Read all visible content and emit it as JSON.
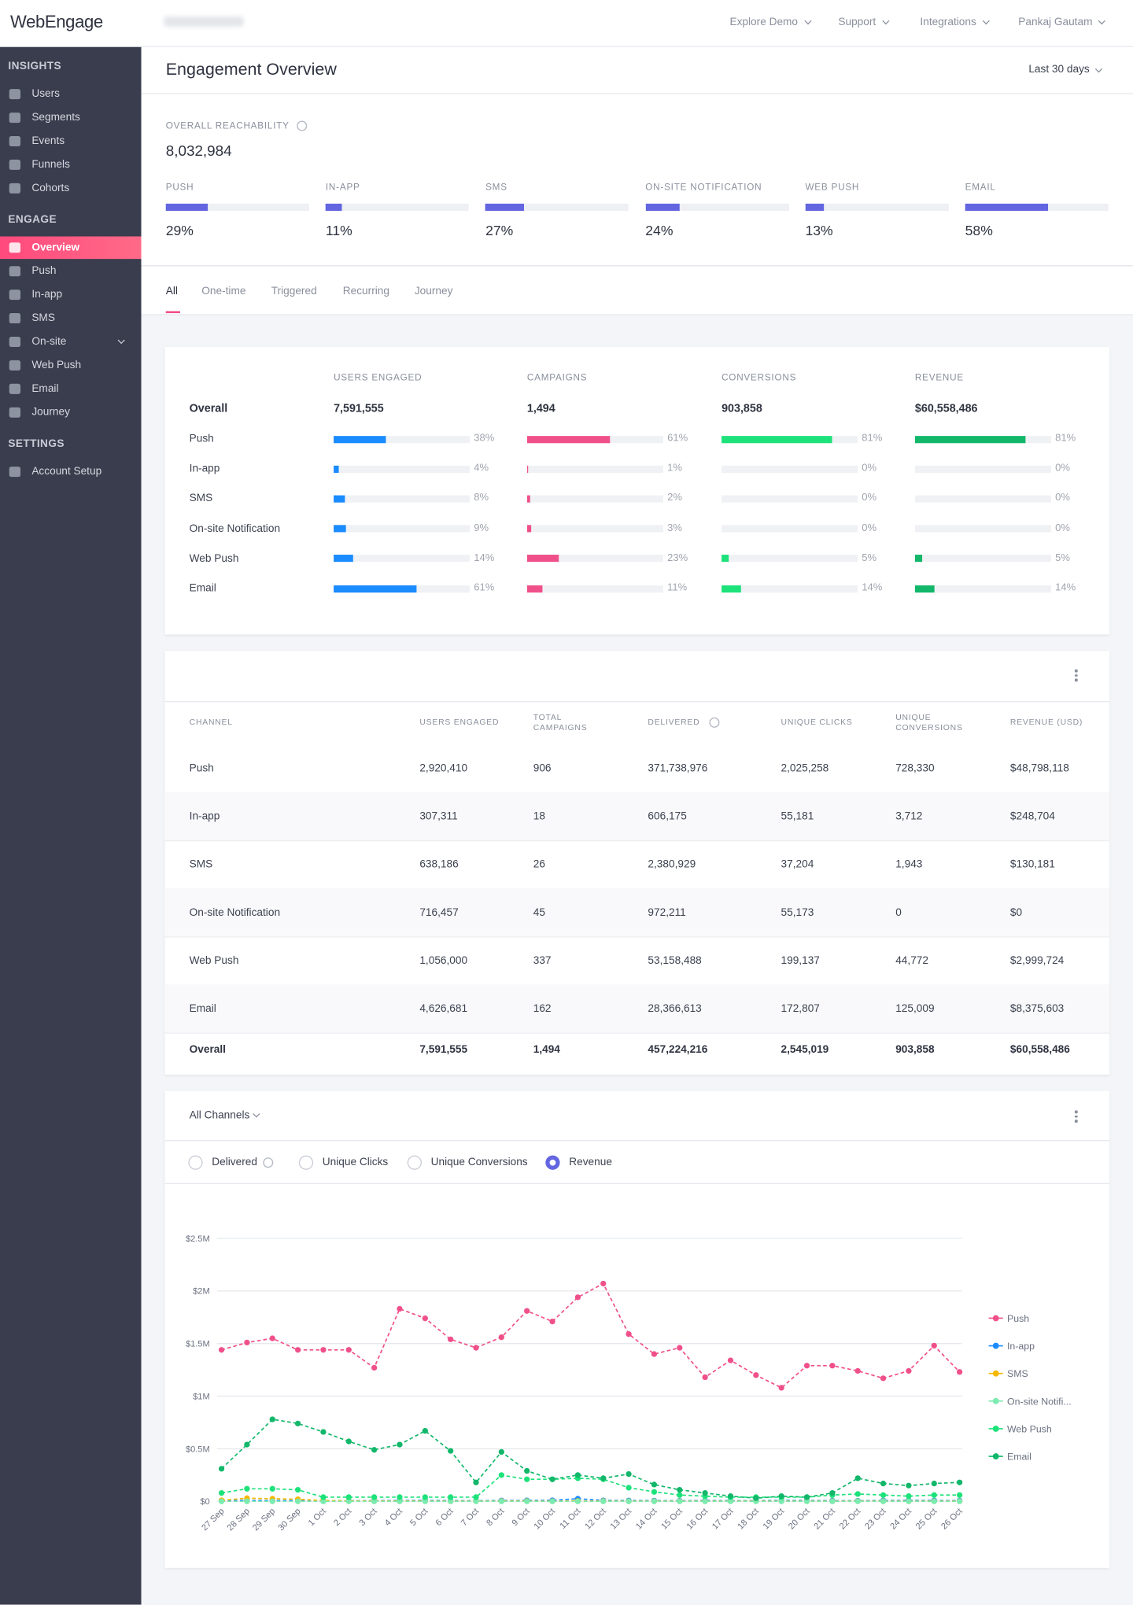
{
  "nav": {
    "logo": "WebEngage",
    "menu": [
      "Explore Demo",
      "Support",
      "Integrations",
      "Pankaj Gautam"
    ]
  },
  "sidebar": {
    "active_item": "Overview",
    "sections": [
      {
        "title": "INSIGHTS",
        "items": [
          "Users",
          "Segments",
          "Events",
          "Funnels",
          "Cohorts"
        ]
      },
      {
        "title": "ENGAGE",
        "items": [
          "Overview",
          "Push",
          "In-app",
          "SMS",
          "On-site",
          "Web Push",
          "Email",
          "Journey"
        ]
      },
      {
        "title": "SETTINGS",
        "items": [
          "Account Setup"
        ]
      }
    ]
  },
  "header": {
    "title": "Engagement Overview",
    "range": "Last 30 days"
  },
  "reachability": {
    "label": "OVERALL REACHABILITY",
    "value": "8,032,984",
    "color": "#6366e0",
    "channels": [
      {
        "name": "PUSH",
        "value": 29,
        "label": "29%"
      },
      {
        "name": "IN-APP",
        "value": 11,
        "label": "11%"
      },
      {
        "name": "SMS",
        "value": 27,
        "label": "27%"
      },
      {
        "name": "ON-SITE NOTIFICATION",
        "value": 24,
        "label": "24%"
      },
      {
        "name": "WEB PUSH",
        "value": 13,
        "label": "13%"
      },
      {
        "name": "EMAIL",
        "value": 58,
        "label": "58%"
      }
    ]
  },
  "tabs": {
    "items": [
      "All",
      "One-time",
      "Triggered",
      "Recurring",
      "Journey"
    ],
    "active": 0
  },
  "summary": {
    "columns": [
      "USERS ENGAGED",
      "CAMPAIGNS",
      "CONVERSIONS",
      "REVENUE"
    ],
    "colors": [
      "#1a8cff",
      "#f0508a",
      "#1de27a",
      "#12b76a"
    ],
    "overall": {
      "label": "Overall",
      "values": [
        "7,591,555",
        "1,494",
        "903,858",
        "$60,558,486"
      ]
    },
    "rows": [
      {
        "label": "Push",
        "values": [
          38,
          61,
          81,
          81
        ],
        "value_labels": [
          "38%",
          "61%",
          "81%",
          "81%"
        ]
      },
      {
        "label": "In-app",
        "values": [
          4,
          1,
          0,
          0
        ],
        "value_labels": [
          "4%",
          "1%",
          "0%",
          "0%"
        ]
      },
      {
        "label": "SMS",
        "values": [
          8,
          2,
          0,
          0
        ],
        "value_labels": [
          "8%",
          "2%",
          "0%",
          "0%"
        ]
      },
      {
        "label": "On-site Notification",
        "values": [
          9,
          3,
          0,
          0
        ],
        "value_labels": [
          "9%",
          "3%",
          "0%",
          "0%"
        ]
      },
      {
        "label": "Web Push",
        "values": [
          14,
          23,
          5,
          5
        ],
        "value_labels": [
          "14%",
          "23%",
          "5%",
          "5%"
        ]
      },
      {
        "label": "Email",
        "values": [
          61,
          11,
          14,
          14
        ],
        "value_labels": [
          "61%",
          "11%",
          "14%",
          "14%"
        ]
      }
    ]
  },
  "channel_table": {
    "headers": [
      "CHANNEL",
      "USERS ENGAGED",
      "TOTAL CAMPAIGNS",
      "DELIVERED",
      "UNIQUE CLICKS",
      "UNIQUE CONVERSIONS",
      "REVENUE (USD)"
    ],
    "rows": [
      [
        "Push",
        "2,920,410",
        "906",
        "371,738,976",
        "2,025,258",
        "728,330",
        "$48,798,118"
      ],
      [
        "In-app",
        "307,311",
        "18",
        "606,175",
        "55,181",
        "3,712",
        "$248,704"
      ],
      [
        "SMS",
        "638,186",
        "26",
        "2,380,929",
        "37,204",
        "1,943",
        "$130,181"
      ],
      [
        "On-site Notification",
        "716,457",
        "45",
        "972,211",
        "55,173",
        "0",
        "$0"
      ],
      [
        "Web Push",
        "1,056,000",
        "337",
        "53,158,488",
        "199,137",
        "44,772",
        "$2,999,724"
      ],
      [
        "Email",
        "4,626,681",
        "162",
        "28,366,613",
        "172,807",
        "125,009",
        "$8,375,603"
      ]
    ],
    "total": [
      "Overall",
      "7,591,555",
      "1,494",
      "457,224,216",
      "2,545,019",
      "903,858",
      "$60,558,486"
    ]
  },
  "chart_controls": {
    "dropdown": "All Channels",
    "metrics": [
      "Delivered",
      "Unique Clicks",
      "Unique Conversions",
      "Revenue"
    ],
    "selected": 3
  },
  "chart_data": {
    "type": "line",
    "ylim": [
      0,
      2500000
    ],
    "yticks": [
      {
        "value": 0,
        "label": "$0"
      },
      {
        "value": 500000,
        "label": "$0.5M"
      },
      {
        "value": 1000000,
        "label": "$1M"
      },
      {
        "value": 1500000,
        "label": "$1.5M"
      },
      {
        "value": 2000000,
        "label": "$2M"
      },
      {
        "value": 2500000,
        "label": "$2.5M"
      }
    ],
    "grid": true,
    "legend": "right",
    "categories": [
      "27 Sep",
      "28 Sep",
      "29 Sep",
      "30 Sep",
      "1 Oct",
      "2 Oct",
      "3 Oct",
      "4 Oct",
      "5 Oct",
      "6 Oct",
      "7 Oct",
      "8 Oct",
      "9 Oct",
      "10 Oct",
      "11 Oct",
      "12 Oct",
      "13 Oct",
      "14 Oct",
      "15 Oct",
      "16 Oct",
      "17 Oct",
      "18 Oct",
      "19 Oct",
      "20 Oct",
      "21 Oct",
      "22 Oct",
      "23 Oct",
      "24 Oct",
      "25 Oct",
      "26 Oct"
    ],
    "series": [
      {
        "name": "Push",
        "color": "#f0508a",
        "values": [
          1440000,
          1510000,
          1550000,
          1440000,
          1440000,
          1440000,
          1270000,
          1830000,
          1740000,
          1540000,
          1460000,
          1560000,
          1810000,
          1710000,
          1940000,
          2070000,
          1590000,
          1400000,
          1460000,
          1180000,
          1340000,
          1200000,
          1080000,
          1290000,
          1290000,
          1240000,
          1170000,
          1240000,
          1480000,
          1230000
        ]
      },
      {
        "name": "In-app",
        "color": "#1a8cff",
        "values": [
          6000,
          9000,
          7000,
          8000,
          5000,
          6000,
          7000,
          8000,
          9000,
          7000,
          6000,
          8000,
          9000,
          10000,
          25000,
          9000,
          8000,
          7000,
          6000,
          8000,
          7000,
          6000,
          9000,
          8000,
          7000,
          6000,
          8000,
          9000,
          8000,
          7000
        ]
      },
      {
        "name": "SMS",
        "color": "#f5b800",
        "values": [
          10000,
          30000,
          25000,
          20000,
          8000,
          5000,
          4000,
          3000,
          3000,
          2000,
          2000,
          3000,
          3000,
          2000,
          4000,
          3000,
          2000,
          2000,
          2000,
          2000,
          2000,
          2000,
          3000,
          2000,
          2000,
          2000,
          2000,
          2000,
          2000,
          2000
        ]
      },
      {
        "name": "On-site Notifi...",
        "color": "#7debb0",
        "values": [
          0,
          0,
          0,
          0,
          0,
          0,
          0,
          0,
          0,
          0,
          0,
          0,
          0,
          0,
          0,
          0,
          0,
          0,
          0,
          0,
          0,
          0,
          0,
          0,
          0,
          0,
          0,
          0,
          0,
          0
        ]
      },
      {
        "name": "Web Push",
        "color": "#1de27a",
        "values": [
          80000,
          120000,
          120000,
          110000,
          40000,
          40000,
          40000,
          40000,
          40000,
          40000,
          40000,
          250000,
          210000,
          210000,
          220000,
          210000,
          130000,
          90000,
          60000,
          50000,
          40000,
          40000,
          40000,
          40000,
          60000,
          70000,
          60000,
          50000,
          60000,
          60000
        ]
      },
      {
        "name": "Email",
        "color": "#12b76a",
        "values": [
          310000,
          540000,
          780000,
          740000,
          660000,
          570000,
          490000,
          540000,
          670000,
          480000,
          180000,
          470000,
          290000,
          210000,
          250000,
          220000,
          260000,
          160000,
          110000,
          80000,
          50000,
          30000,
          50000,
          40000,
          80000,
          220000,
          170000,
          150000,
          170000,
          180000
        ]
      }
    ]
  }
}
